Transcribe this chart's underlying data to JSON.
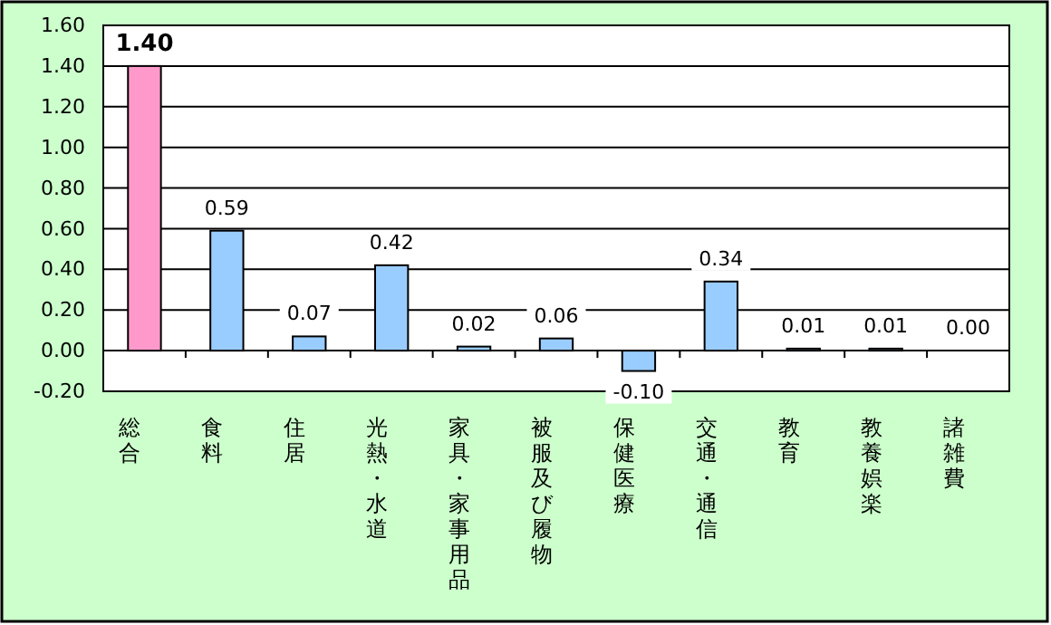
{
  "chart_data": {
    "type": "bar",
    "categories": [
      "総合",
      "食料",
      "住居",
      "光熱・水道",
      "家具・家事用品",
      "被服及び履物",
      "保健医療",
      "交通・通信",
      "教育",
      "教養娯楽",
      "諸雑費"
    ],
    "values": [
      1.4,
      0.59,
      0.07,
      0.42,
      0.02,
      0.06,
      -0.1,
      0.34,
      0.01,
      0.01,
      0.0
    ],
    "colors": [
      "#ff99cc",
      "#99ccff",
      "#99ccff",
      "#99ccff",
      "#99ccff",
      "#99ccff",
      "#99ccff",
      "#99ccff",
      "#99ccff",
      "#99ccff",
      "#99ccff"
    ],
    "value_labels": [
      "1.40",
      "0.59",
      "0.07",
      "0.42",
      "0.02",
      "0.06",
      "-0.10",
      "0.34",
      "0.01",
      "0.01",
      "0.00"
    ],
    "ylim": [
      -0.2,
      1.6
    ],
    "yticks": [
      {
        "value": -0.2,
        "label": "-0.20"
      },
      {
        "value": 0,
        "label": "0.00"
      },
      {
        "value": 0.2,
        "label": "0.20"
      },
      {
        "value": 0.4,
        "label": "0.40"
      },
      {
        "value": 0.6,
        "label": "0.60"
      },
      {
        "value": 0.8,
        "label": "0.80"
      },
      {
        "value": 1,
        "label": "1.00"
      },
      {
        "value": 1.2,
        "label": "1.20"
      },
      {
        "value": 1.4,
        "label": "1.40"
      },
      {
        "value": 1.6,
        "label": "1.60"
      }
    ],
    "grid": "y"
  }
}
